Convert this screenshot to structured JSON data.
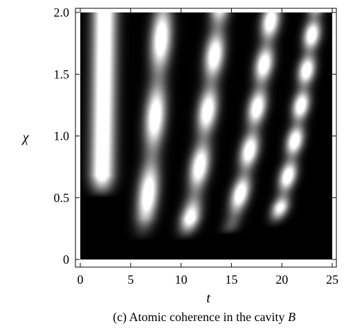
{
  "chart_data": {
    "type": "heatmap",
    "title": "(c) Atomic coherence in the cavity B",
    "caption": {
      "prefix": "(c) Atomic coherence in the cavity ",
      "italic": "B"
    },
    "xlabel": "t",
    "ylabel": "χ",
    "xlim": [
      0,
      25
    ],
    "ylim": [
      0,
      2.0
    ],
    "xticks": [
      0,
      5,
      10,
      15,
      20,
      25
    ],
    "xtick_labels": [
      "0",
      "5",
      "10",
      "15",
      "20",
      "25"
    ],
    "yticks": [
      0,
      0.5,
      1.0,
      1.5,
      2.0
    ],
    "ytick_labels": [
      "0",
      "0.5",
      "1.0",
      "1.5",
      "2.0"
    ],
    "colormap": [
      "#000000",
      "#ffffff"
    ],
    "grid": false,
    "legend": "none",
    "bright_bands": [
      {
        "t_at_chi_2": 2.4,
        "t_min": 2.1,
        "chi_min": 0.5
      },
      {
        "t_at_chi_2": 8.2,
        "t_min": 6.0,
        "chi_min": 0.15
      },
      {
        "t_at_chi_2": 13.8,
        "t_min": 10.2,
        "chi_min": 0.15
      },
      {
        "t_at_chi_2": 19.0,
        "t_min": 14.5,
        "chi_min": 0.2
      },
      {
        "t_at_chi_2": 23.3,
        "t_min": 19.0,
        "chi_min": 0.25
      }
    ]
  }
}
